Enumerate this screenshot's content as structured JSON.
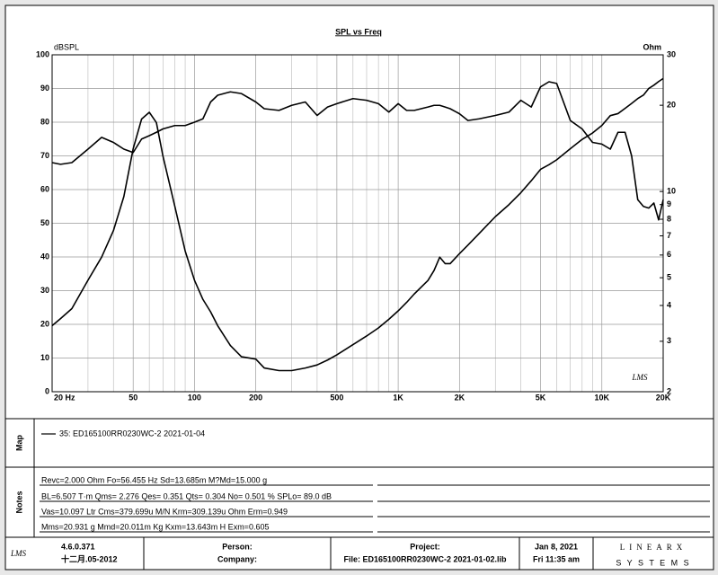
{
  "chart_data": {
    "type": "line",
    "title": "SPL vs Freq",
    "ylabel": "dBSPL",
    "y2label": "Ohm",
    "annotation": "LMS",
    "log_x": true,
    "log_y2": true,
    "grid": true,
    "xlim": [
      20,
      20000
    ],
    "ylim": [
      0,
      100
    ],
    "y2lim": [
      2,
      30
    ],
    "xticks": [
      {
        "value": 20,
        "label": "20  Hz"
      },
      50,
      100,
      200,
      500,
      {
        "value": 1000,
        "label": "1K"
      },
      {
        "value": 2000,
        "label": "2K"
      },
      {
        "value": 5000,
        "label": "5K"
      },
      {
        "value": 10000,
        "label": "10K"
      },
      {
        "value": 20000,
        "label": "20K"
      }
    ],
    "xminor": [
      30,
      40,
      60,
      70,
      80,
      90,
      300,
      400,
      600,
      700,
      800,
      900,
      3000,
      4000,
      6000,
      7000,
      8000,
      9000
    ],
    "yticks": [
      0,
      10,
      20,
      30,
      40,
      50,
      60,
      70,
      80,
      90,
      100
    ],
    "y2ticks": [
      2,
      3,
      4,
      5,
      6,
      7,
      8,
      9,
      10,
      20,
      30
    ],
    "x": [
      20,
      22,
      25,
      30,
      35,
      40,
      45,
      50,
      55,
      60,
      65,
      70,
      80,
      90,
      100,
      110,
      120,
      130,
      150,
      170,
      200,
      220,
      260,
      300,
      350,
      400,
      450,
      500,
      600,
      700,
      800,
      900,
      1000,
      1100,
      1200,
      1400,
      1500,
      1600,
      1700,
      1800,
      2000,
      2200,
      2500,
      3000,
      3500,
      4000,
      4500,
      5000,
      5500,
      6000,
      7000,
      8000,
      9000,
      10000,
      11000,
      12000,
      13000,
      14000,
      15000,
      16000,
      17000,
      18000,
      19000,
      20000
    ],
    "series": [
      {
        "color": "#000000",
        "values": [
          68,
          67.5,
          68,
          72,
          75.5,
          74,
          72,
          71,
          75,
          76,
          77,
          78,
          79,
          79,
          80,
          81,
          86,
          88,
          89,
          88.5,
          86,
          84,
          83.5,
          85,
          86,
          82,
          84.5,
          85.5,
          87,
          86.5,
          85.5,
          83,
          85.5,
          83.5,
          83.5,
          84.5,
          85,
          85,
          84.5,
          84,
          82.5,
          80.5,
          81,
          82,
          83,
          86.5,
          84.5,
          90.5,
          92,
          91.5,
          80.5,
          78,
          74,
          73.5,
          72,
          77,
          77,
          70,
          57,
          55,
          54.5,
          56,
          51,
          57
        ]
      },
      {
        "color": "#000000",
        "axis": "y2",
        "values": [
          3.4,
          3.6,
          3.9,
          4.9,
          5.9,
          7.3,
          9.6,
          14.1,
          17.9,
          18.9,
          17.4,
          13.3,
          8.9,
          6.2,
          4.9,
          4.2,
          3.8,
          3.4,
          2.9,
          2.65,
          2.6,
          2.42,
          2.37,
          2.37,
          2.42,
          2.48,
          2.58,
          2.69,
          2.92,
          3.13,
          3.34,
          3.58,
          3.83,
          4.1,
          4.39,
          4.89,
          5.3,
          5.9,
          5.6,
          5.6,
          6.07,
          6.5,
          7.14,
          8.17,
          9.0,
          9.9,
          10.9,
          11.95,
          12.4,
          12.9,
          14.1,
          15.2,
          16.0,
          17.0,
          18.4,
          18.7,
          19.5,
          20.3,
          21.1,
          21.7,
          22.9,
          23.5,
          24.2,
          24.8
        ]
      }
    ]
  },
  "map": {
    "label": "Map",
    "entries": [
      "35: ED165100RR0230WC-2 2021-01-04"
    ]
  },
  "notes": {
    "label": "Notes",
    "lines": [
      "Revc=2.000 Ohm  Fo=56.455 Hz  Sd=13.685m M?Md=15.000 g",
      "BL=6.507 T·m  Qms= 2.276  Qes= 0.351  Qts= 0.304  No= 0.501 %  SPLo= 89.0 dB",
      "Vas=10.097 Ltr  Cms=379.699u M/N  Krm=309.139u Ohm  Erm=0.949",
      "Mms=20.931 g  Mmd=20.011m Kg  Kxm=13.643m H  Exm=0.605"
    ]
  },
  "footer": {
    "logo": "LMS",
    "version": "4.6.0.371",
    "build_date": "十二月.05-2012",
    "person": "Person:",
    "company": "Company:",
    "project": "Project:",
    "file": "File: ED165100RR0230WC-2 2021-01-02.lib",
    "date": "Jan  8, 2021",
    "time": "Fri 11:35 am",
    "brand": "LINEARX",
    "brand_sub": "S Y S T E M S"
  }
}
